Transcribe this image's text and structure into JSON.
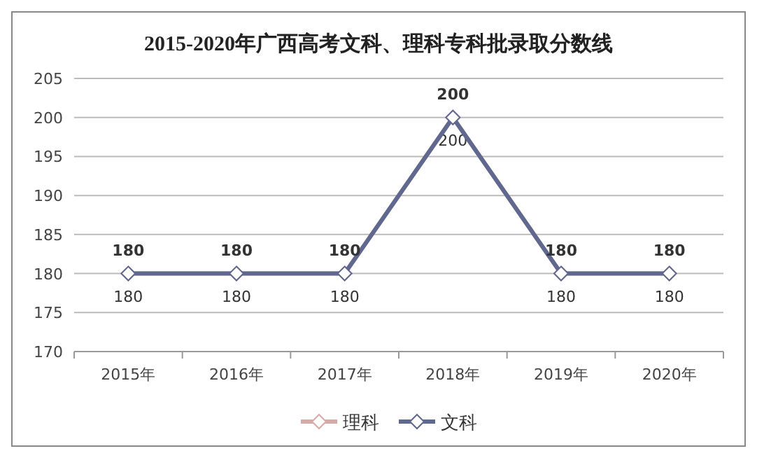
{
  "chart_data": {
    "type": "line",
    "title": "2015-2020年广西高考文科、理科专科批录取分数线",
    "categories": [
      "2015年",
      "2016年",
      "2017年",
      "2018年",
      "2019年",
      "2020年"
    ],
    "series": [
      {
        "name": "理科",
        "color": "#d9a9a6",
        "values": [
          180,
          180,
          180,
          200,
          180,
          180
        ]
      },
      {
        "name": "文科",
        "color": "#5f6990",
        "values": [
          180,
          180,
          180,
          200,
          180,
          180
        ]
      }
    ],
    "ylim": [
      170,
      205
    ],
    "yticks": [
      170,
      175,
      180,
      185,
      190,
      195,
      200,
      205
    ],
    "grid": "y",
    "legend": "bottom",
    "marker": "diamond",
    "line_style": "solid",
    "data_labels": true
  }
}
